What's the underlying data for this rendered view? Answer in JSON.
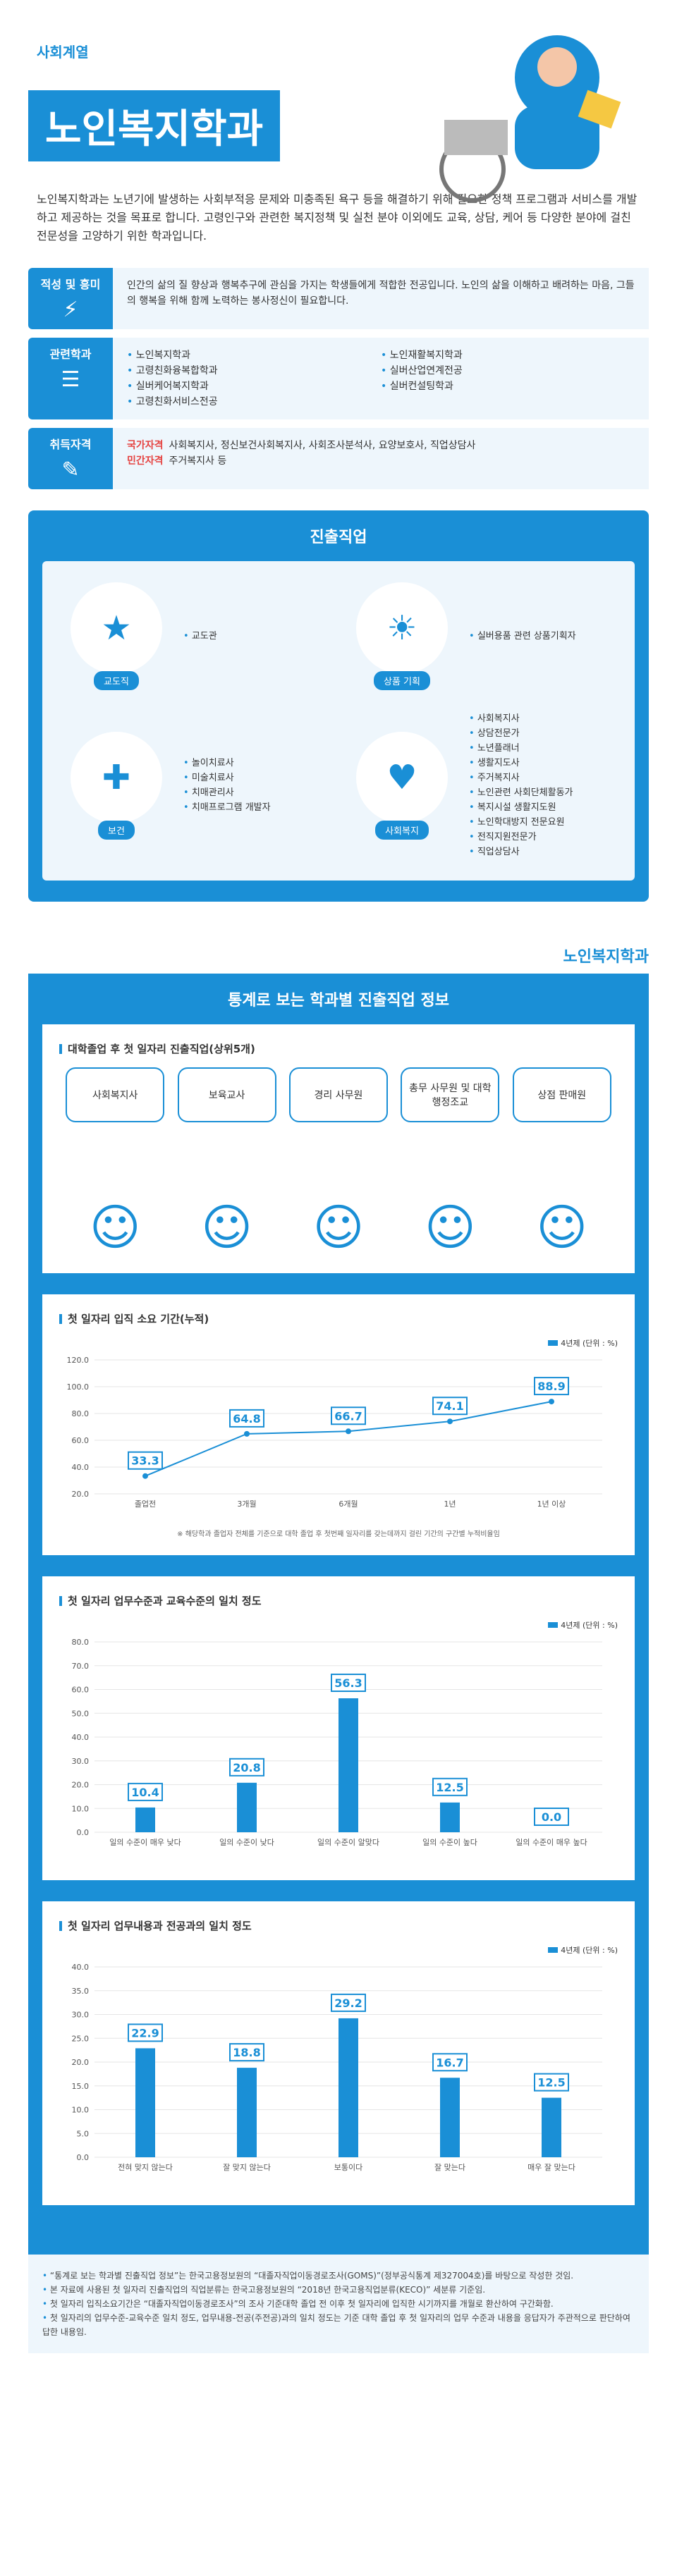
{
  "category": "사회계열",
  "title": "노인복지학과",
  "intro": "노인복지학과는 노년기에 발생하는 사회부적응 문제와 미충족된 욕구 등을 해결하기 위해 필요한 정책 프로그램과 서비스를 개발하고 제공하는 것을 목표로 합니다. 고령인구와 관련한 복지정책 및 실천 분야 이외에도 교육, 상담, 케어 등 다양한 분야에 걸친 전문성을 고양하기 위한 학과입니다.",
  "aptitude": {
    "label": "적성 및 흥미",
    "text": "인간의 삶의 질 향상과 행복추구에 관심을 가지는 학생들에게 적합한 전공입니다. 노인의 삶을 이해하고 배려하는 마음, 그들의 행복을 위해 함께 노력하는 봉사정신이 필요합니다."
  },
  "related": {
    "label": "관련학과",
    "items": [
      "노인복지학과",
      "노인재활복지학과",
      "고령친화융복합학과",
      "실버산업연계전공",
      "실버케어복지학과",
      "실버컨설팅학과",
      "고령친화서비스전공"
    ]
  },
  "license": {
    "label": "취득자격",
    "national_tag": "국가자격",
    "national": "사회복지사, 정신보건사회복지사, 사회조사분석사, 요양보호사, 직업상담사",
    "private_tag": "민간자격",
    "private": "주거복지사 등"
  },
  "career": {
    "title": "진출직업",
    "groups": [
      {
        "label": "교도직",
        "icon": "police-cap-icon",
        "items": [
          "교도관"
        ]
      },
      {
        "label": "상품 기획",
        "icon": "lightbulb-icon",
        "items": [
          "실버용품 관련 상품기획자"
        ]
      },
      {
        "label": "보건",
        "icon": "first-aid-icon",
        "items": [
          "놀이치료사",
          "미술치료사",
          "치매관리사",
          "치매프로그램 개발자"
        ]
      },
      {
        "label": "사회복지",
        "icon": "heart-hands-icon",
        "items": [
          "사회복지사",
          "상담전문가",
          "노년플래너",
          "생활지도사",
          "주거복지사",
          "노인관련 사회단체활동가",
          "복지시설 생활지도원",
          "노인학대방지 전문요원",
          "전직지원전문가",
          "직업상담사"
        ]
      }
    ]
  },
  "brand_tag": "노인복지학과",
  "stats": {
    "title": "통계로 보는 학과별 진출직업 정보",
    "top5_title": "대학졸업 후 첫 일자리 진출직업(상위5개)",
    "top5": [
      "사회복지사",
      "보육교사",
      "경리 사무원",
      "총무 사무원 및 대학 행정조교",
      "상점 판매원"
    ],
    "legend": "4년제",
    "unit": "(단위 : %)"
  },
  "chart_data": [
    {
      "type": "line",
      "title": "첫 일자리 입직 소요 기간(누적)",
      "categories": [
        "졸업전",
        "3개월",
        "6개월",
        "1년",
        "1년 이상"
      ],
      "values": [
        33.3,
        64.8,
        66.7,
        74.1,
        88.9
      ],
      "ylim": [
        20,
        120
      ],
      "yticks": [
        "120.0",
        "100.0",
        "80.0",
        "60.0",
        "40.0",
        "20.0"
      ],
      "series_name": "4년제",
      "note": "※ 해당학과 졸업자 전체를 기준으로 대학 졸업 후 첫번째 일자리를 갖는데까지 걸린 기간의 구간별 누적비율임"
    },
    {
      "type": "bar",
      "title": "첫 일자리 업무수준과 교육수준의 일치 정도",
      "categories": [
        "일의 수준이 매우 낮다",
        "일의 수준이 낮다",
        "일의 수준이 알맞다",
        "일의 수준이 높다",
        "일의 수준이 매우 높다"
      ],
      "values": [
        10.4,
        20.8,
        56.3,
        12.5,
        0.0
      ],
      "ylim": [
        0,
        80
      ],
      "yticks": [
        "80.0",
        "70.0",
        "60.0",
        "50.0",
        "40.0",
        "30.0",
        "20.0",
        "10.0",
        "0.0"
      ],
      "series_name": "4년제"
    },
    {
      "type": "bar",
      "title": "첫 일자리 업무내용과 전공과의 일치 정도",
      "categories": [
        "전혀 맞지 않는다",
        "잘 맞지 않는다",
        "보통이다",
        "잘 맞는다",
        "매우 잘 맞는다"
      ],
      "values": [
        22.9,
        18.8,
        29.2,
        16.7,
        12.5
      ],
      "ylim": [
        0,
        40
      ],
      "yticks": [
        "40.0",
        "35.0",
        "30.0",
        "25.0",
        "20.0",
        "15.0",
        "10.0",
        "5.0",
        "0.0"
      ],
      "series_name": "4년제"
    }
  ],
  "notes": [
    "“통계로 보는 학과별 진출직업 정보”는 한국고용정보원의 “대졸자직업이동경로조사(GOMS)”(정부공식통계 제327004호)를 바탕으로 작성한 것임.",
    "본 자료에 사용된 첫 일자리 진출직업의 직업분류는 한국고용정보원의 “2018년 한국고용직업분류(KECO)” 세분류 기준임.",
    "첫 일자리 입직소요기간은 “대졸자직업이동경로조사”의 조사 기준대학 졸업 전 이후 첫 일자리에 입직한 시기까지를 개월로 환산하여 구간화함.",
    "첫 일자리의 업무수준-교육수준 일치 정도, 업무내용-전공(주전공)과의 일치 정도는 기준 대학 졸업 후 첫 일자리의 업무 수준과 내용을 응답자가 주관적으로 판단하여 답한 내용임."
  ]
}
